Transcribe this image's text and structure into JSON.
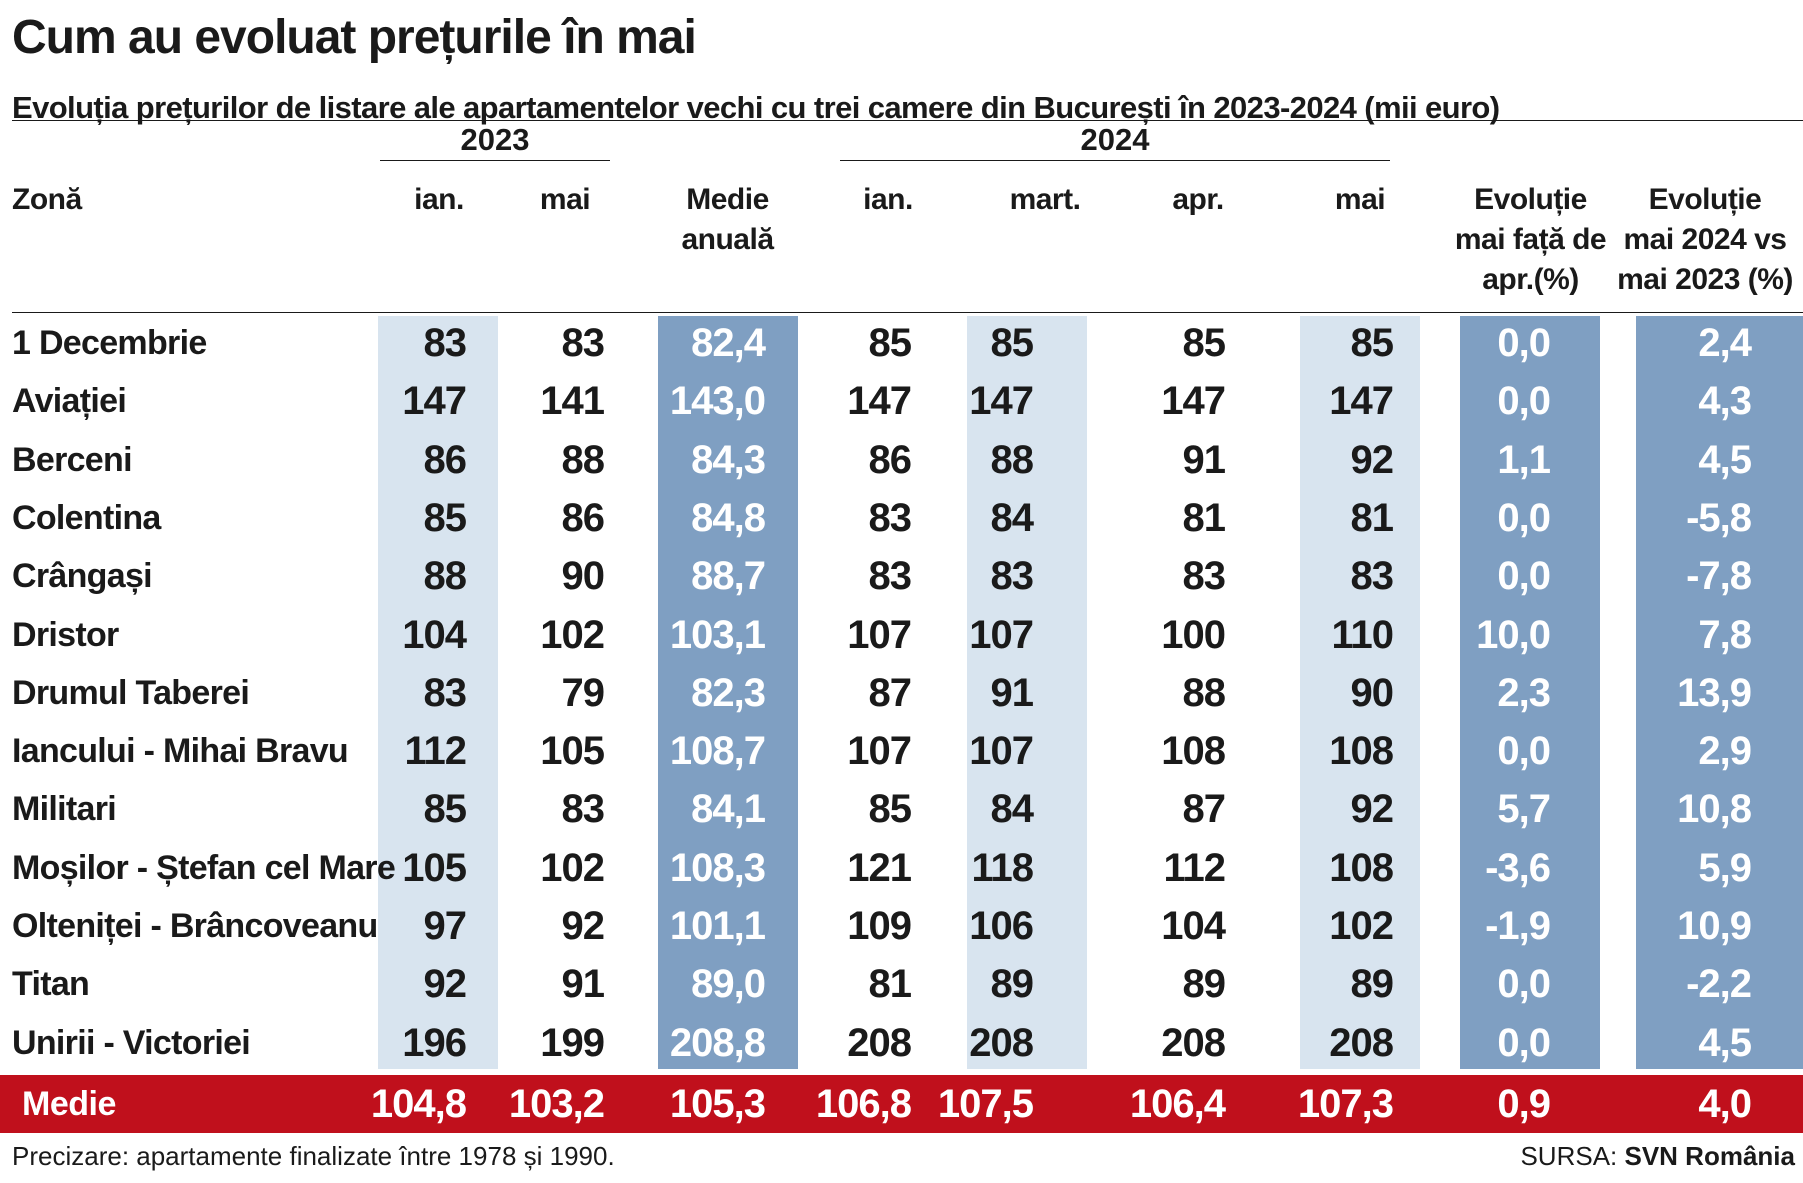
{
  "header": {
    "title": "Cum au evoluat prețurile în mai",
    "subtitle": "Evoluția prețurilor de listare ale apartamentelor vechi cu trei camere din București în 2023-2024 (mii euro)"
  },
  "chart_data": {
    "type": "table",
    "title": "Cum au evoluat prețurile în mai",
    "subtitle": "Evoluția prețurilor de listare ale apartamentelor vechi cu trei camere din București în 2023-2024 (mii euro)",
    "year_groups": [
      "2023",
      "2024"
    ],
    "columns": [
      "Zonă",
      "ian.",
      "mai",
      "Medie anuală",
      "ian.",
      "mart.",
      "apr.",
      "mai",
      "Evoluție mai față de apr.(%)",
      "Evoluție mai 2024 vs mai 2023 (%)"
    ],
    "header_lines": {
      "zone": [
        "Zonă"
      ],
      "c2023_ian": [
        "ian."
      ],
      "c2023_mai": [
        "mai"
      ],
      "medie": [
        "Medie",
        "anuală"
      ],
      "c2024_ian": [
        "ian."
      ],
      "c2024_mart": [
        "mart."
      ],
      "c2024_apr": [
        "apr."
      ],
      "c2024_mai": [
        "mai"
      ],
      "evo_apr": [
        "Evoluție",
        "mai față de",
        "apr.(%)"
      ],
      "evo_yoy": [
        "Evoluție",
        "mai 2024 vs",
        "mai 2023 (%)"
      ]
    },
    "rows": [
      {
        "zone": "1 Decembrie",
        "values": [
          "83",
          "83",
          "82,4",
          "85",
          "85",
          "85",
          "85",
          "0,0",
          "2,4"
        ]
      },
      {
        "zone": "Aviației",
        "values": [
          "147",
          "141",
          "143,0",
          "147",
          "147",
          "147",
          "147",
          "0,0",
          "4,3"
        ]
      },
      {
        "zone": "Berceni",
        "values": [
          "86",
          "88",
          "84,3",
          "86",
          "88",
          "91",
          "92",
          "1,1",
          "4,5"
        ]
      },
      {
        "zone": "Colentina",
        "values": [
          "85",
          "86",
          "84,8",
          "83",
          "84",
          "81",
          "81",
          "0,0",
          "-5,8"
        ]
      },
      {
        "zone": "Crângași",
        "values": [
          "88",
          "90",
          "88,7",
          "83",
          "83",
          "83",
          "83",
          "0,0",
          "-7,8"
        ]
      },
      {
        "zone": "Dristor",
        "values": [
          "104",
          "102",
          "103,1",
          "107",
          "107",
          "100",
          "110",
          "10,0",
          "7,8"
        ]
      },
      {
        "zone": "Drumul Taberei",
        "values": [
          "83",
          "79",
          "82,3",
          "87",
          "91",
          "88",
          "90",
          "2,3",
          "13,9"
        ]
      },
      {
        "zone": "Iancului - Mihai Bravu",
        "values": [
          "112",
          "105",
          "108,7",
          "107",
          "107",
          "108",
          "108",
          "0,0",
          "2,9"
        ]
      },
      {
        "zone": "Militari",
        "values": [
          "85",
          "83",
          "84,1",
          "85",
          "84",
          "87",
          "92",
          "5,7",
          "10,8"
        ]
      },
      {
        "zone": "Moșilor - Ștefan cel Mare",
        "values": [
          "105",
          "102",
          "108,3",
          "121",
          "118",
          "112",
          "108",
          "-3,6",
          "5,9"
        ]
      },
      {
        "zone": "Olteniței - Brâncoveanu",
        "values": [
          "97",
          "92",
          "101,1",
          "109",
          "106",
          "104",
          "102",
          "-1,9",
          "10,9"
        ]
      },
      {
        "zone": "Titan",
        "values": [
          "92",
          "91",
          "89,0",
          "81",
          "89",
          "89",
          "89",
          "0,0",
          "-2,2"
        ]
      },
      {
        "zone": "Unirii - Victoriei",
        "values": [
          "196",
          "199",
          "208,8",
          "208",
          "208",
          "208",
          "208",
          "0,0",
          "4,5"
        ]
      }
    ],
    "summary": {
      "label": "Medie",
      "values": [
        "104,8",
        "103,2",
        "105,3",
        "106,8",
        "107,5",
        "106,4",
        "107,3",
        "0,9",
        "4,0"
      ]
    },
    "colors": {
      "light_band": "#d8e4ef",
      "dark_band": "#7f9fc2",
      "summary_band": "#c0101c"
    }
  },
  "footer": {
    "note": "Precizare: apartamente finalizate între 1978 și 1990.",
    "source_prefix": "SURSA:",
    "source_name": "SVN România"
  }
}
